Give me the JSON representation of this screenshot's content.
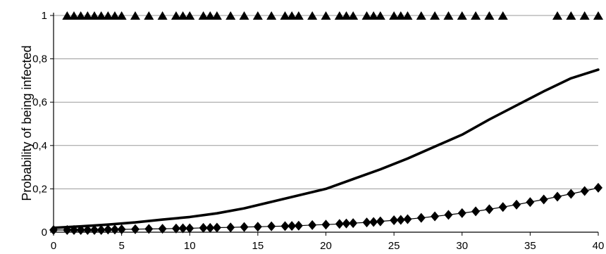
{
  "chart_data": {
    "type": "scatter",
    "title": "",
    "xlabel": "",
    "ylabel": "Probability of being infected",
    "xlim": [
      0,
      40
    ],
    "ylim": [
      0,
      1
    ],
    "grid": "horizontal",
    "x_ticks": [
      "0",
      "5",
      "10",
      "15",
      "20",
      "25",
      "30",
      "35",
      "40"
    ],
    "y_ticks": [
      "0",
      "0,2",
      "0,4",
      "0,6",
      "0,8",
      "1"
    ],
    "series": [
      {
        "marker": "triangle",
        "color": "#000000",
        "y": 1,
        "x": [
          1,
          1.5,
          2,
          2.5,
          3,
          3.5,
          4,
          4.5,
          5,
          6,
          7,
          8,
          9,
          9.5,
          10,
          11,
          11.5,
          12,
          13,
          14,
          15,
          16,
          17,
          17.5,
          18,
          19,
          20,
          21,
          21.5,
          22,
          23,
          23.5,
          24,
          25,
          25.5,
          26,
          27,
          28,
          29,
          30,
          31,
          32,
          33,
          37,
          38,
          39,
          40
        ]
      },
      {
        "line": true,
        "color": "#000000",
        "x": [
          0,
          2,
          4,
          6,
          8,
          10,
          12,
          14,
          16,
          18,
          20,
          22,
          24,
          26,
          28,
          30,
          32,
          34,
          36,
          38,
          40
        ],
        "y": [
          0.02,
          0.027,
          0.035,
          0.045,
          0.058,
          0.07,
          0.087,
          0.11,
          0.14,
          0.17,
          0.2,
          0.245,
          0.29,
          0.34,
          0.395,
          0.45,
          0.52,
          0.585,
          0.65,
          0.71,
          0.75
        ]
      },
      {
        "marker": "diamond",
        "line": true,
        "color": "#000000",
        "x": [
          0,
          1,
          1.5,
          2,
          2.5,
          3,
          3.5,
          4,
          4.5,
          5,
          6,
          7,
          8,
          9,
          9.5,
          10,
          11,
          11.5,
          12,
          13,
          14,
          15,
          16,
          17,
          17.5,
          18,
          19,
          20,
          21,
          21.5,
          22,
          23,
          23.5,
          24,
          25,
          25.5,
          26,
          27,
          28,
          29,
          30,
          31,
          32,
          33,
          34,
          35,
          36,
          37,
          38,
          39,
          40
        ],
        "y": [
          0.01,
          0.01,
          0.01,
          0.01,
          0.01,
          0.01,
          0.01,
          0.012,
          0.012,
          0.013,
          0.014,
          0.015,
          0.016,
          0.017,
          0.018,
          0.018,
          0.02,
          0.02,
          0.021,
          0.022,
          0.024,
          0.025,
          0.027,
          0.028,
          0.029,
          0.03,
          0.033,
          0.035,
          0.038,
          0.04,
          0.042,
          0.045,
          0.047,
          0.05,
          0.055,
          0.057,
          0.06,
          0.066,
          0.073,
          0.08,
          0.088,
          0.096,
          0.106,
          0.116,
          0.127,
          0.139,
          0.151,
          0.164,
          0.177,
          0.19,
          0.205
        ]
      }
    ]
  }
}
